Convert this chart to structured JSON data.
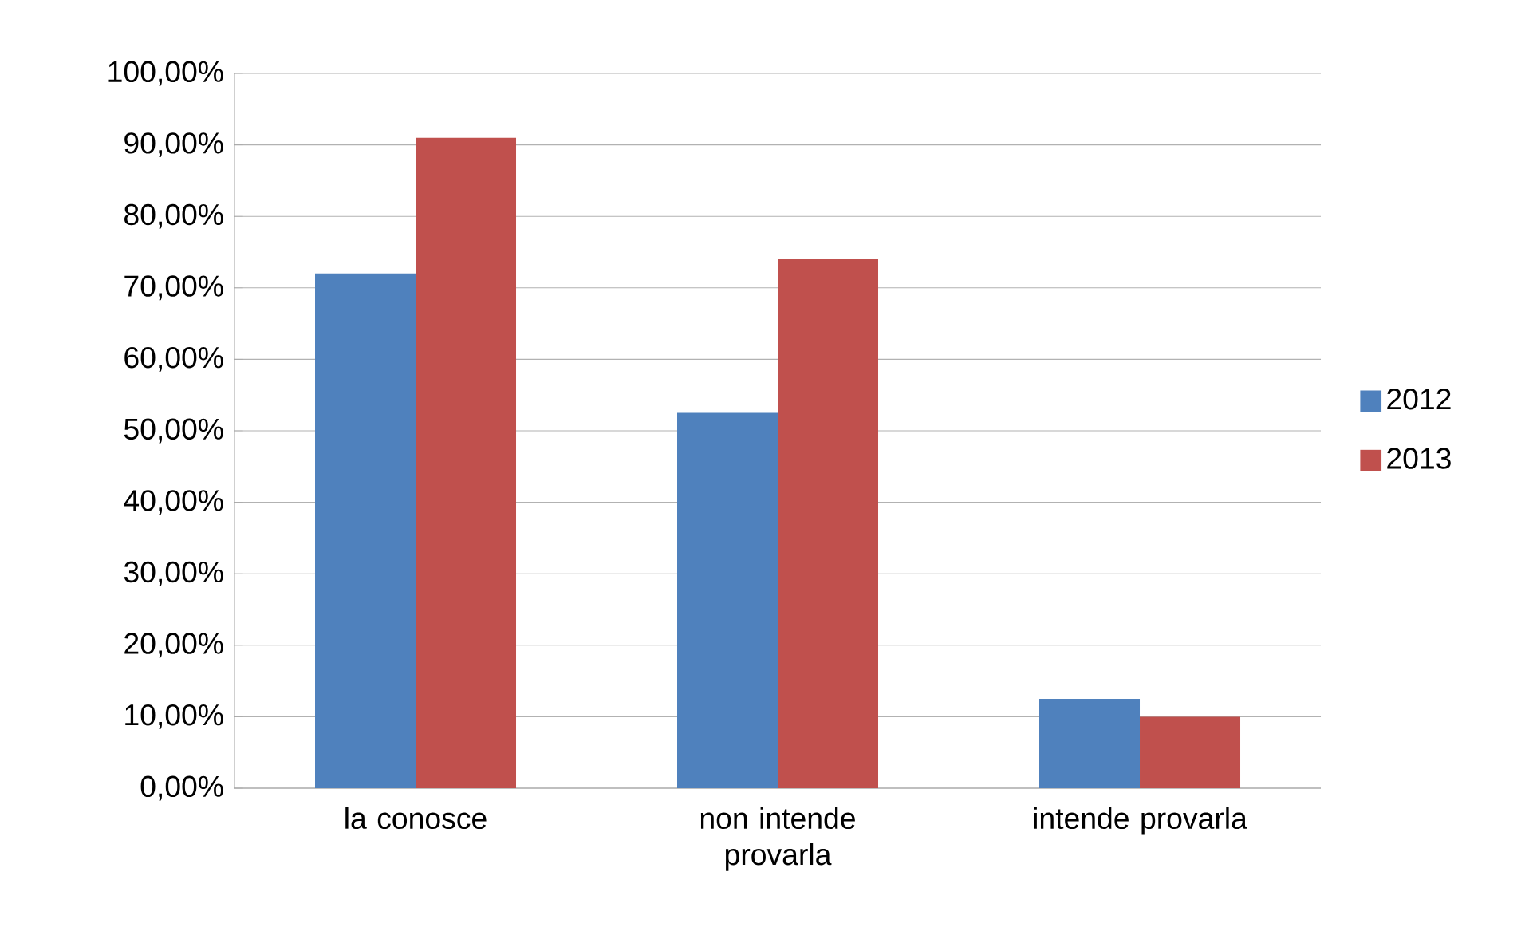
{
  "chart_data": {
    "type": "bar",
    "categories": [
      "la conosce",
      "non intende provarla",
      "intende provarla"
    ],
    "series": [
      {
        "name": "2012",
        "color": "#4f81bd",
        "values": [
          72,
          52.5,
          12.5
        ]
      },
      {
        "name": "2013",
        "color": "#c0504d",
        "values": [
          91,
          74,
          10
        ]
      }
    ],
    "ylim": [
      0,
      100
    ],
    "yticks": [
      {
        "value": 0,
        "label": "0,00%"
      },
      {
        "value": 10,
        "label": "10,00%"
      },
      {
        "value": 20,
        "label": "20,00%"
      },
      {
        "value": 30,
        "label": "30,00%"
      },
      {
        "value": 40,
        "label": "40,00%"
      },
      {
        "value": 50,
        "label": "50,00%"
      },
      {
        "value": 60,
        "label": "60,00%"
      },
      {
        "value": 70,
        "label": "70,00%"
      },
      {
        "value": 80,
        "label": "80,00%"
      },
      {
        "value": 90,
        "label": "90,00%"
      },
      {
        "value": 100,
        "label": "100,00%"
      }
    ],
    "grid": "y",
    "legend": "right"
  }
}
